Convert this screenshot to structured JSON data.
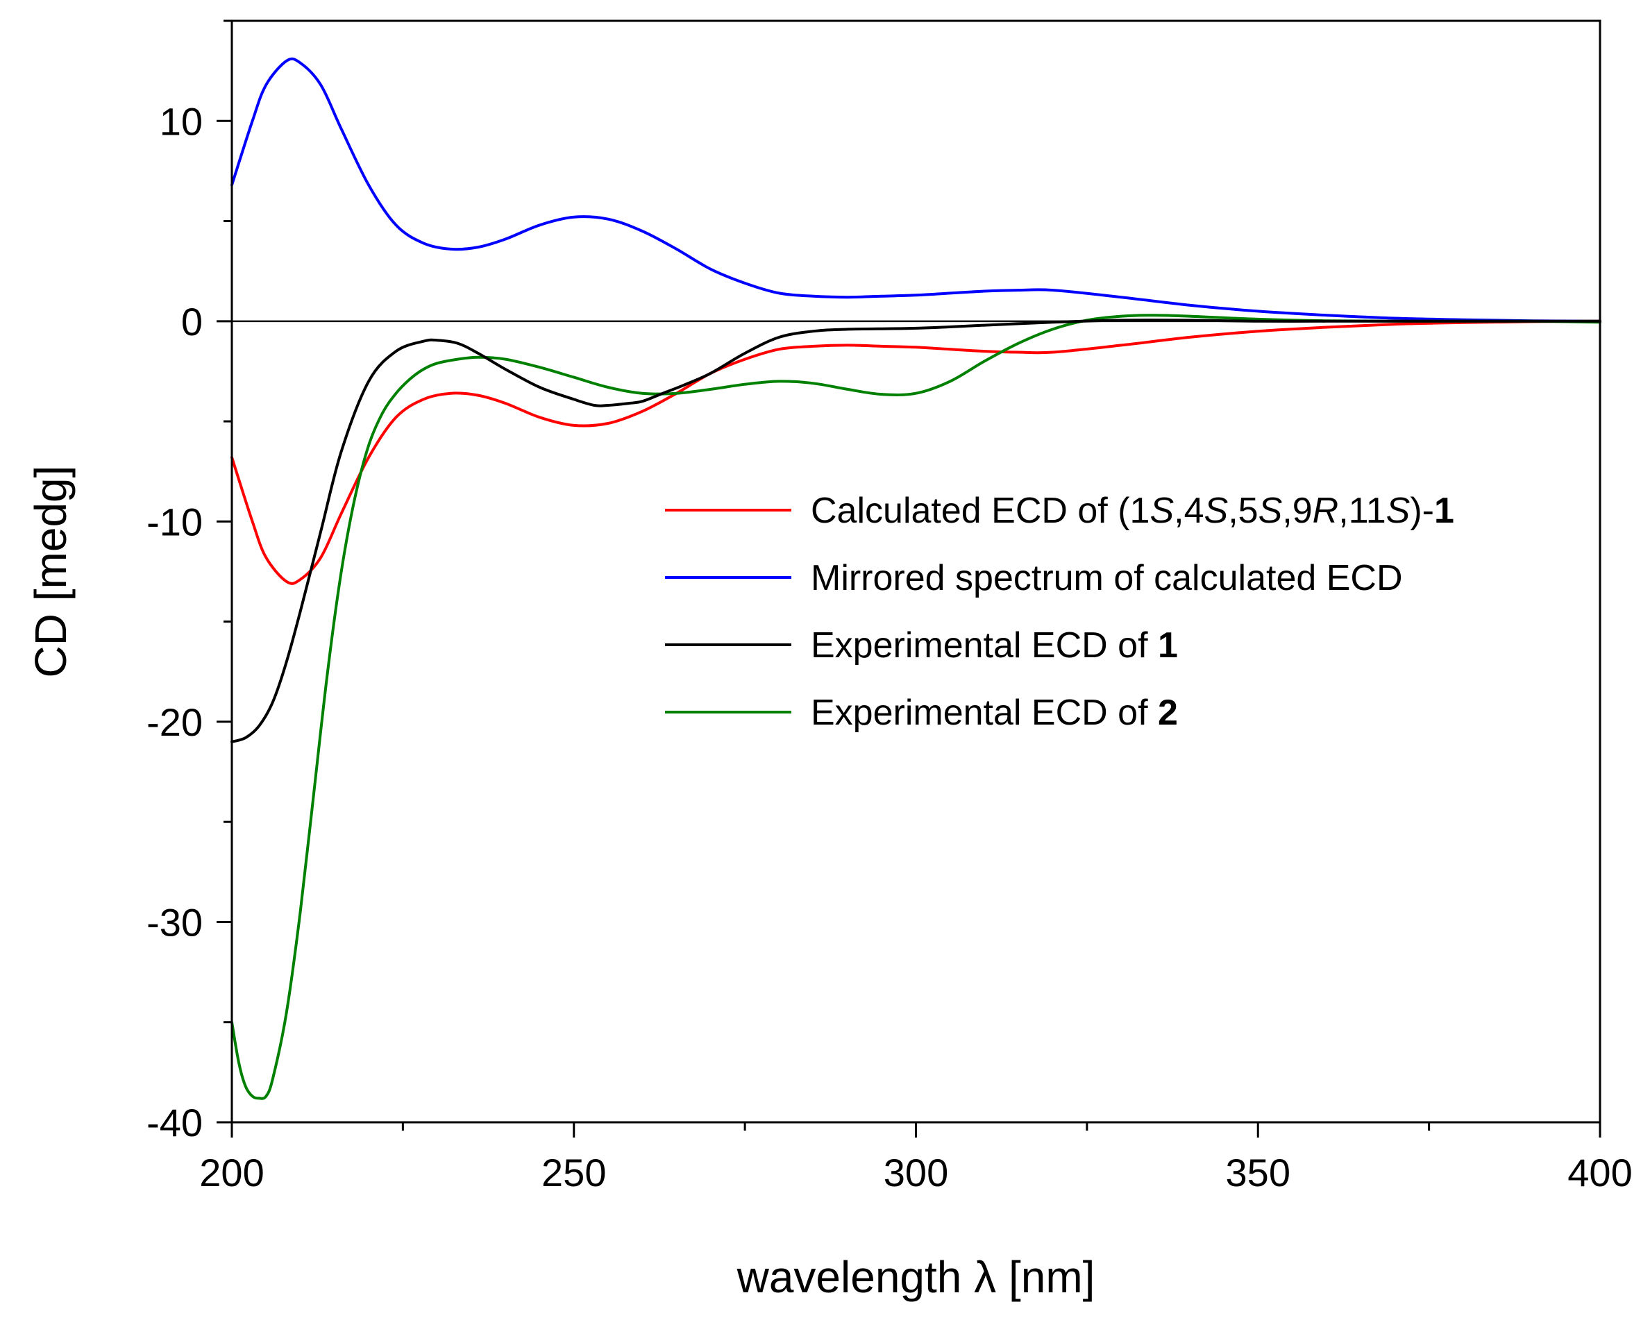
{
  "chart_data": {
    "type": "line",
    "title": "",
    "xlabel": "wavelength λ [nm]",
    "ylabel": "CD [medg]",
    "xlim": [
      200,
      400
    ],
    "ylim": [
      -40,
      15
    ],
    "xticks": [
      200,
      250,
      300,
      350,
      400
    ],
    "xtick_labels": [
      "200",
      "250",
      "300",
      "350",
      "400"
    ],
    "yticks": [
      -40,
      -30,
      -20,
      -10,
      0,
      10
    ],
    "ytick_labels": [
      "-40",
      "-30",
      "-20",
      "-10",
      "0",
      "10"
    ],
    "zero_line": true,
    "grid": false,
    "legend_position": "center-right",
    "series": [
      {
        "name": "Calculated ECD of (1S,4S,5S,9R,11S)-1",
        "legend_parts": [
          {
            "text": "Calculated ECD of (1",
            "style": "normal"
          },
          {
            "text": "S",
            "style": "italic"
          },
          {
            "text": ",4",
            "style": "normal"
          },
          {
            "text": "S",
            "style": "italic"
          },
          {
            "text": ",5",
            "style": "normal"
          },
          {
            "text": "S",
            "style": "italic"
          },
          {
            "text": ",9",
            "style": "normal"
          },
          {
            "text": "R",
            "style": "italic"
          },
          {
            "text": ",11",
            "style": "normal"
          },
          {
            "text": "S",
            "style": "italic"
          },
          {
            "text": ")-",
            "style": "normal"
          },
          {
            "text": "1",
            "style": "bold"
          }
        ],
        "color": "#ff0000",
        "x": [
          200,
          203,
          205,
          208,
          210,
          213,
          216,
          220,
          224,
          228,
          232,
          236,
          240,
          245,
          250,
          255,
          260,
          265,
          270,
          275,
          280,
          285,
          290,
          295,
          300,
          305,
          310,
          315,
          320,
          330,
          340,
          350,
          360,
          370,
          380,
          390,
          400
        ],
        "y": [
          -6.8,
          -10.0,
          -11.8,
          -13.0,
          -12.9,
          -11.8,
          -9.6,
          -6.8,
          -4.8,
          -3.9,
          -3.6,
          -3.7,
          -4.1,
          -4.8,
          -5.2,
          -5.1,
          -4.5,
          -3.6,
          -2.6,
          -1.9,
          -1.4,
          -1.25,
          -1.2,
          -1.25,
          -1.3,
          -1.4,
          -1.5,
          -1.55,
          -1.55,
          -1.2,
          -0.8,
          -0.5,
          -0.3,
          -0.15,
          -0.07,
          -0.02,
          0
        ]
      },
      {
        "name": "Mirrored spectrum of calculated ECD",
        "legend_parts": [
          {
            "text": "Mirrored spectrum of calculated ECD",
            "style": "normal"
          }
        ],
        "color": "#0000ff",
        "x": [
          200,
          203,
          205,
          208,
          210,
          213,
          216,
          220,
          224,
          228,
          232,
          236,
          240,
          245,
          250,
          255,
          260,
          265,
          270,
          275,
          280,
          285,
          290,
          295,
          300,
          305,
          310,
          315,
          320,
          330,
          340,
          350,
          360,
          370,
          380,
          390,
          400
        ],
        "y": [
          6.8,
          10.0,
          11.8,
          13.0,
          12.9,
          11.8,
          9.6,
          6.8,
          4.8,
          3.9,
          3.6,
          3.7,
          4.1,
          4.8,
          5.2,
          5.1,
          4.5,
          3.6,
          2.6,
          1.9,
          1.4,
          1.25,
          1.2,
          1.25,
          1.3,
          1.4,
          1.5,
          1.55,
          1.55,
          1.2,
          0.8,
          0.5,
          0.3,
          0.15,
          0.07,
          0.02,
          0
        ]
      },
      {
        "name": "Experimental ECD of 1",
        "legend_parts": [
          {
            "text": "Experimental ECD of ",
            "style": "normal"
          },
          {
            "text": "1",
            "style": "bold"
          }
        ],
        "color": "#000000",
        "x": [
          200,
          202,
          204,
          206,
          208,
          210,
          213,
          216,
          220,
          224,
          228,
          230,
          233,
          236,
          240,
          245,
          250,
          253,
          255,
          258,
          260,
          263,
          266,
          270,
          275,
          280,
          285,
          290,
          300,
          310,
          320,
          330,
          340,
          350,
          360,
          370,
          380,
          390,
          400
        ],
        "y": [
          -21.0,
          -20.8,
          -20.2,
          -19.0,
          -17.0,
          -14.5,
          -10.5,
          -6.5,
          -3.0,
          -1.5,
          -1.0,
          -0.95,
          -1.1,
          -1.6,
          -2.4,
          -3.3,
          -3.9,
          -4.2,
          -4.2,
          -4.1,
          -4.0,
          -3.6,
          -3.2,
          -2.6,
          -1.6,
          -0.8,
          -0.5,
          -0.4,
          -0.35,
          -0.2,
          -0.05,
          0.05,
          0.05,
          0.0,
          0.0,
          0.0,
          0.0,
          0.0,
          0.0
        ]
      },
      {
        "name": "Experimental ECD of 2",
        "legend_parts": [
          {
            "text": "Experimental ECD of ",
            "style": "normal"
          },
          {
            "text": "2",
            "style": "bold"
          }
        ],
        "color": "#008000",
        "x": [
          200,
          201,
          202,
          203,
          204,
          205,
          206,
          208,
          210,
          212,
          214,
          216,
          218,
          220,
          222,
          224,
          226,
          228,
          230,
          233,
          236,
          240,
          245,
          250,
          255,
          260,
          265,
          270,
          275,
          280,
          285,
          290,
          295,
          300,
          305,
          310,
          315,
          320,
          325,
          330,
          335,
          340,
          350,
          360,
          370,
          380,
          390,
          400
        ],
        "y": [
          -35.0,
          -37.0,
          -38.2,
          -38.7,
          -38.8,
          -38.7,
          -37.8,
          -34.5,
          -29.5,
          -23.5,
          -17.5,
          -12.5,
          -8.8,
          -6.2,
          -4.6,
          -3.6,
          -2.9,
          -2.4,
          -2.1,
          -1.9,
          -1.8,
          -1.9,
          -2.3,
          -2.8,
          -3.3,
          -3.6,
          -3.6,
          -3.4,
          -3.15,
          -3.0,
          -3.1,
          -3.4,
          -3.65,
          -3.6,
          -3.0,
          -2.0,
          -1.1,
          -0.4,
          0.05,
          0.25,
          0.3,
          0.25,
          0.1,
          0.02,
          0.0,
          0.0,
          0.0,
          -0.05
        ]
      }
    ]
  }
}
